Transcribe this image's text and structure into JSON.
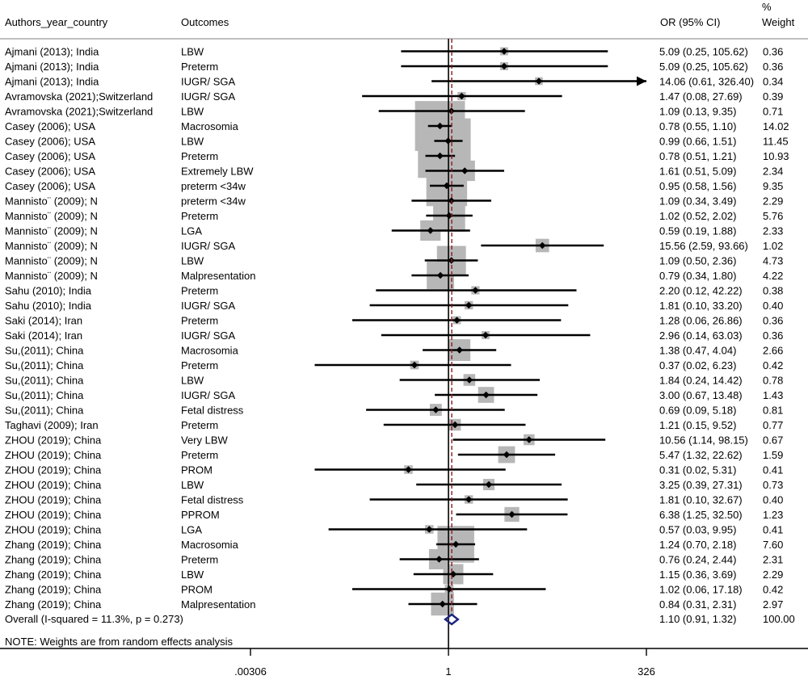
{
  "colors": {
    "box": "#b7b7b7",
    "null_line": "#000000",
    "overall_line": "#8b1a1a",
    "diamond": "#1a237e",
    "grid_line": "#999999"
  },
  "header": {
    "study_col": "Authors_year_country",
    "outcome_col": "Outcomes",
    "ci_col": "OR (95% CI)",
    "weight_col_line1": "%",
    "weight_col_line2": "Weight"
  },
  "note": "NOTE: Weights are from random effects analysis",
  "chart_data": {
    "type": "forest",
    "x_scale": "log",
    "x_ticks": [
      {
        "value": 0.00306,
        "label": ".00306"
      },
      {
        "value": 1,
        "label": "1"
      },
      {
        "value": 326,
        "label": "326"
      }
    ],
    "xlim": [
      0.00306,
      326
    ],
    "null_value": 1,
    "studies": [
      {
        "study": "Ajmani (2013); India",
        "outcome": "LBW",
        "or": 5.09,
        "lo": 0.25,
        "hi": 105.62,
        "ci_text": "5.09 (0.25, 105.62)",
        "weight": 0.36,
        "weight_text": "0.36"
      },
      {
        "study": "Ajmani (2013); India",
        "outcome": "Preterm",
        "or": 5.09,
        "lo": 0.25,
        "hi": 105.62,
        "ci_text": "5.09 (0.25, 105.62)",
        "weight": 0.36,
        "weight_text": "0.36"
      },
      {
        "study": "Ajmani (2013); India",
        "outcome": "IUGR/ SGA",
        "or": 14.06,
        "lo": 0.61,
        "hi": 326.4,
        "ci_text": "14.06 (0.61, 326.40)",
        "weight": 0.34,
        "weight_text": "0.34"
      },
      {
        "study": "Avramovska (2021);Switzerland",
        "outcome": "IUGR/ SGA",
        "or": 1.47,
        "lo": 0.08,
        "hi": 27.69,
        "ci_text": "1.47 (0.08, 27.69)",
        "weight": 0.39,
        "weight_text": "0.39"
      },
      {
        "study": "Avramovska (2021);Switzerland",
        "outcome": "LBW",
        "or": 1.09,
        "lo": 0.13,
        "hi": 9.35,
        "ci_text": "1.09 (0.13, 9.35)",
        "weight": 0.71,
        "weight_text": "0.71"
      },
      {
        "study": "Casey (2006); USA",
        "outcome": "Macrosomia",
        "or": 0.78,
        "lo": 0.55,
        "hi": 1.1,
        "ci_text": "0.78 (0.55, 1.10)",
        "weight": 14.02,
        "weight_text": "14.02"
      },
      {
        "study": "Casey (2006); USA",
        "outcome": "LBW",
        "or": 0.99,
        "lo": 0.66,
        "hi": 1.51,
        "ci_text": "0.99 (0.66, 1.51)",
        "weight": 11.45,
        "weight_text": "11.45"
      },
      {
        "study": "Casey (2006); USA",
        "outcome": "Preterm",
        "or": 0.78,
        "lo": 0.51,
        "hi": 1.21,
        "ci_text": "0.78 (0.51, 1.21)",
        "weight": 10.93,
        "weight_text": "10.93"
      },
      {
        "study": "Casey (2006); USA",
        "outcome": "Extremely LBW",
        "or": 1.61,
        "lo": 0.51,
        "hi": 5.09,
        "ci_text": "1.61 (0.51, 5.09)",
        "weight": 2.34,
        "weight_text": "2.34"
      },
      {
        "study": "Casey (2006); USA",
        "outcome": "preterm <34w",
        "or": 0.95,
        "lo": 0.58,
        "hi": 1.56,
        "ci_text": "0.95 (0.58, 1.56)",
        "weight": 9.35,
        "weight_text": "9.35"
      },
      {
        "study": "Mannisto¨ (2009); N",
        "outcome": "preterm <34w",
        "or": 1.09,
        "lo": 0.34,
        "hi": 3.49,
        "ci_text": "1.09 (0.34, 3.49)",
        "weight": 2.29,
        "weight_text": "2.29"
      },
      {
        "study": "Mannisto¨ (2009); N",
        "outcome": "Preterm",
        "or": 1.02,
        "lo": 0.52,
        "hi": 2.02,
        "ci_text": "1.02 (0.52, 2.02)",
        "weight": 5.76,
        "weight_text": "5.76"
      },
      {
        "study": "Mannisto¨ (2009); N",
        "outcome": "LGA",
        "or": 0.59,
        "lo": 0.19,
        "hi": 1.88,
        "ci_text": "0.59 (0.19, 1.88)",
        "weight": 2.33,
        "weight_text": "2.33"
      },
      {
        "study": "Mannisto¨ (2009); N",
        "outcome": "IUGR/ SGA",
        "or": 15.56,
        "lo": 2.59,
        "hi": 93.66,
        "ci_text": "15.56 (2.59, 93.66)",
        "weight": 1.02,
        "weight_text": "1.02"
      },
      {
        "study": "Mannisto¨ (2009); N",
        "outcome": "LBW",
        "or": 1.09,
        "lo": 0.5,
        "hi": 2.36,
        "ci_text": "1.09 (0.50, 2.36)",
        "weight": 4.73,
        "weight_text": "4.73"
      },
      {
        "study": "Mannisto¨ (2009); N",
        "outcome": "Malpresentation",
        "or": 0.79,
        "lo": 0.34,
        "hi": 1.8,
        "ci_text": "0.79 (0.34, 1.80)",
        "weight": 4.22,
        "weight_text": "4.22"
      },
      {
        "study": "Sahu (2010); India",
        "outcome": "Preterm",
        "or": 2.2,
        "lo": 0.12,
        "hi": 42.22,
        "ci_text": "2.20 (0.12, 42.22)",
        "weight": 0.38,
        "weight_text": "0.38"
      },
      {
        "study": "Sahu (2010); India",
        "outcome": "IUGR/ SGA",
        "or": 1.81,
        "lo": 0.1,
        "hi": 33.2,
        "ci_text": "1.81 (0.10, 33.20)",
        "weight": 0.4,
        "weight_text": "0.40"
      },
      {
        "study": "Saki (2014); Iran",
        "outcome": "Preterm",
        "or": 1.28,
        "lo": 0.06,
        "hi": 26.86,
        "ci_text": "1.28 (0.06, 26.86)",
        "weight": 0.36,
        "weight_text": "0.36"
      },
      {
        "study": "Saki (2014); Iran",
        "outcome": "IUGR/ SGA",
        "or": 2.96,
        "lo": 0.14,
        "hi": 63.03,
        "ci_text": "2.96 (0.14, 63.03)",
        "weight": 0.36,
        "weight_text": "0.36"
      },
      {
        "study": "Su,(2011); China",
        "outcome": "Macrosomia",
        "or": 1.38,
        "lo": 0.47,
        "hi": 4.04,
        "ci_text": "1.38 (0.47, 4.04)",
        "weight": 2.66,
        "weight_text": "2.66"
      },
      {
        "study": "Su,(2011); China",
        "outcome": "Preterm",
        "or": 0.37,
        "lo": 0.02,
        "hi": 6.23,
        "ci_text": "0.37 (0.02, 6.23)",
        "weight": 0.42,
        "weight_text": "0.42"
      },
      {
        "study": "Su,(2011); China",
        "outcome": "LBW",
        "or": 1.84,
        "lo": 0.24,
        "hi": 14.42,
        "ci_text": "1.84 (0.24, 14.42)",
        "weight": 0.78,
        "weight_text": "0.78"
      },
      {
        "study": "Su,(2011); China",
        "outcome": "IUGR/ SGA",
        "or": 3.0,
        "lo": 0.67,
        "hi": 13.48,
        "ci_text": "3.00 (0.67, 13.48)",
        "weight": 1.43,
        "weight_text": "1.43"
      },
      {
        "study": "Su,(2011); China",
        "outcome": "Fetal distress",
        "or": 0.69,
        "lo": 0.09,
        "hi": 5.18,
        "ci_text": "0.69 (0.09, 5.18)",
        "weight": 0.81,
        "weight_text": "0.81"
      },
      {
        "study": "Taghavi (2009); Iran",
        "outcome": "Preterm",
        "or": 1.21,
        "lo": 0.15,
        "hi": 9.52,
        "ci_text": "1.21 (0.15, 9.52)",
        "weight": 0.77,
        "weight_text": "0.77"
      },
      {
        "study": "ZHOU (2019); China",
        "outcome": "Very LBW",
        "or": 10.56,
        "lo": 1.14,
        "hi": 98.15,
        "ci_text": "10.56 (1.14, 98.15)",
        "weight": 0.67,
        "weight_text": "0.67"
      },
      {
        "study": "ZHOU (2019); China",
        "outcome": "Preterm",
        "or": 5.47,
        "lo": 1.32,
        "hi": 22.62,
        "ci_text": "5.47 (1.32, 22.62)",
        "weight": 1.59,
        "weight_text": "1.59"
      },
      {
        "study": "ZHOU (2019); China",
        "outcome": "PROM",
        "or": 0.31,
        "lo": 0.02,
        "hi": 5.31,
        "ci_text": "0.31 (0.02, 5.31)",
        "weight": 0.41,
        "weight_text": "0.41"
      },
      {
        "study": "ZHOU (2019); China",
        "outcome": "LBW",
        "or": 3.25,
        "lo": 0.39,
        "hi": 27.31,
        "ci_text": "3.25 (0.39, 27.31)",
        "weight": 0.73,
        "weight_text": "0.73"
      },
      {
        "study": "ZHOU (2019); China",
        "outcome": "Fetal distress",
        "or": 1.81,
        "lo": 0.1,
        "hi": 32.67,
        "ci_text": "1.81 (0.10, 32.67)",
        "weight": 0.4,
        "weight_text": "0.40"
      },
      {
        "study": "ZHOU (2019); China",
        "outcome": "PPROM",
        "or": 6.38,
        "lo": 1.25,
        "hi": 32.5,
        "ci_text": "6.38 (1.25, 32.50)",
        "weight": 1.23,
        "weight_text": "1.23"
      },
      {
        "study": "ZHOU (2019); China",
        "outcome": "LGA",
        "or": 0.57,
        "lo": 0.03,
        "hi": 9.95,
        "ci_text": "0.57 (0.03, 9.95)",
        "weight": 0.41,
        "weight_text": "0.41"
      },
      {
        "study": "Zhang (2019); China",
        "outcome": "Macrosomia",
        "or": 1.24,
        "lo": 0.7,
        "hi": 2.18,
        "ci_text": "1.24 (0.70, 2.18)",
        "weight": 7.6,
        "weight_text": "7.60"
      },
      {
        "study": "Zhang (2019); China",
        "outcome": "Preterm",
        "or": 0.76,
        "lo": 0.24,
        "hi": 2.44,
        "ci_text": "0.76 (0.24, 2.44)",
        "weight": 2.31,
        "weight_text": "2.31"
      },
      {
        "study": "Zhang (2019); China",
        "outcome": "LBW",
        "or": 1.15,
        "lo": 0.36,
        "hi": 3.69,
        "ci_text": "1.15 (0.36, 3.69)",
        "weight": 2.29,
        "weight_text": "2.29"
      },
      {
        "study": "Zhang (2019); China",
        "outcome": "PROM",
        "or": 1.02,
        "lo": 0.06,
        "hi": 17.18,
        "ci_text": "1.02 (0.06, 17.18)",
        "weight": 0.42,
        "weight_text": "0.42"
      },
      {
        "study": "Zhang (2019); China",
        "outcome": "Malpresentation",
        "or": 0.84,
        "lo": 0.31,
        "hi": 2.31,
        "ci_text": "0.84 (0.31, 2.31)",
        "weight": 2.97,
        "weight_text": "2.97"
      }
    ],
    "overall": {
      "label": "Overall  (I-squared = 11.3%, p = 0.273)",
      "or": 1.1,
      "lo": 0.91,
      "hi": 1.32,
      "ci_text": "1.10 (0.91, 1.32)",
      "weight": 100.0,
      "weight_text": "100.00"
    }
  }
}
